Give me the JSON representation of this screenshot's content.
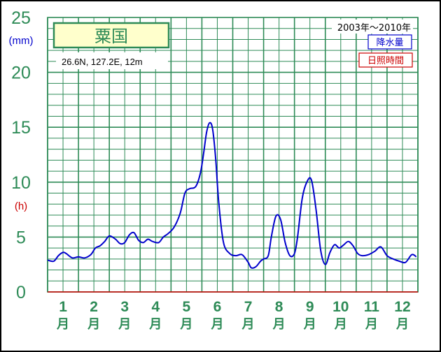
{
  "chart_data": {
    "type": "line",
    "station": "粟国",
    "location": "26.6N,  127.2E,  12m",
    "period": "2003年～2010年",
    "legend": [
      "降水量",
      "日照時間"
    ],
    "left_unit": "(mm)",
    "right_unit": "(h)",
    "y_ticks": [
      "0",
      "5",
      "10",
      "15",
      "20",
      "25"
    ],
    "months": [
      {
        "num": "1",
        "suffix": "月"
      },
      {
        "num": "2",
        "suffix": "月"
      },
      {
        "num": "3",
        "suffix": "月"
      },
      {
        "num": "4",
        "suffix": "月"
      },
      {
        "num": "5",
        "suffix": "月"
      },
      {
        "num": "6",
        "suffix": "月"
      },
      {
        "num": "7",
        "suffix": "月"
      },
      {
        "num": "8",
        "suffix": "月"
      },
      {
        "num": "9",
        "suffix": "月"
      },
      {
        "num": "10",
        "suffix": "月"
      },
      {
        "num": "11",
        "suffix": "月"
      },
      {
        "num": "12",
        "suffix": "月"
      }
    ],
    "xlim": [
      0,
      12
    ],
    "ylim": [
      0,
      25
    ],
    "series": [
      {
        "name": "降水量",
        "color": "#0000cc",
        "x": [
          0.0,
          0.2,
          0.35,
          0.5,
          0.6,
          0.8,
          1.0,
          1.2,
          1.4,
          1.55,
          1.7,
          1.85,
          2.0,
          2.2,
          2.35,
          2.5,
          2.65,
          2.8,
          2.95,
          3.1,
          3.25,
          3.4,
          3.6,
          3.75,
          3.9,
          4.1,
          4.3,
          4.45,
          4.6,
          4.8,
          4.95,
          5.05,
          5.15,
          5.25,
          5.35,
          5.45,
          5.55,
          5.7,
          5.9,
          6.1,
          6.3,
          6.5,
          6.6,
          6.75,
          6.9,
          7.0,
          7.15,
          7.25,
          7.4,
          7.55,
          7.7,
          7.85,
          8.0,
          8.1,
          8.25,
          8.4,
          8.55,
          8.7,
          8.85,
          9.0,
          9.15,
          9.3,
          9.45,
          9.6,
          9.75,
          9.9,
          10.05,
          10.2,
          10.4,
          10.6,
          10.8,
          11.0,
          11.2,
          11.4,
          11.6,
          11.8,
          11.95
        ],
        "values": [
          2.9,
          2.8,
          3.3,
          3.6,
          3.5,
          3.1,
          3.2,
          3.1,
          3.4,
          4.0,
          4.2,
          4.6,
          5.1,
          4.8,
          4.4,
          4.5,
          5.2,
          5.4,
          4.7,
          4.5,
          4.8,
          4.6,
          4.5,
          5.0,
          5.3,
          5.9,
          7.2,
          9.0,
          9.4,
          9.6,
          10.8,
          12.5,
          14.5,
          15.4,
          14.8,
          12.0,
          8.0,
          4.5,
          3.5,
          3.3,
          3.4,
          2.7,
          2.2,
          2.3,
          2.8,
          3.0,
          3.3,
          5.0,
          6.9,
          6.6,
          4.5,
          3.3,
          3.5,
          5.0,
          8.5,
          10.0,
          10.2,
          7.5,
          3.8,
          2.5,
          3.6,
          4.3,
          4.0,
          4.3,
          4.6,
          4.2,
          3.5,
          3.3,
          3.4,
          3.7,
          4.1,
          3.3,
          3.0,
          2.8,
          2.7,
          3.4,
          3.2
        ]
      }
    ]
  }
}
